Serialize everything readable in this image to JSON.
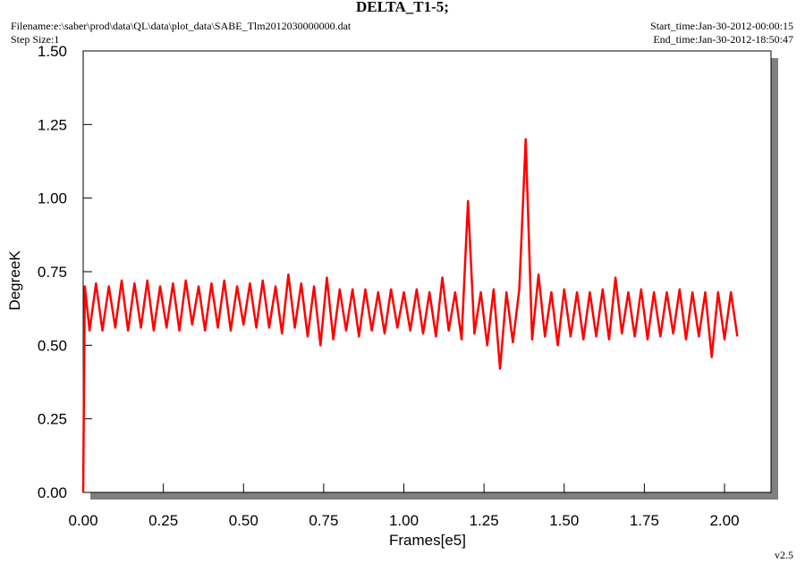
{
  "chart_data": {
    "type": "line",
    "title": "DELTA_T1-5;",
    "filename": "Filename:e:\\saber\\prod\\data\\QL\\data\\plot_data\\SABE_Tlm2012030000000.dat",
    "step_size": "Step Size:1",
    "start_time": "Start_time:Jan-30-2012-00:00:15",
    "end_time": "End_time:Jan-30-2012-18:50:47",
    "version": "v2.5",
    "x_label": "Frames[e5]",
    "y_label": "DegreeK",
    "xlim": [
      0,
      2.145
    ],
    "ylim": [
      0,
      1.5
    ],
    "xticks": [
      {
        "value": 0,
        "label": "0.00"
      },
      {
        "value": 0.25,
        "label": "0.25"
      },
      {
        "value": 0.5,
        "label": "0.50"
      },
      {
        "value": 0.75,
        "label": "0.75"
      },
      {
        "value": 1,
        "label": "1.00"
      },
      {
        "value": 1.25,
        "label": "1.25"
      },
      {
        "value": 1.5,
        "label": "1.50"
      },
      {
        "value": 1.75,
        "label": "1.75"
      },
      {
        "value": 2,
        "label": "2.00"
      }
    ],
    "yticks": [
      {
        "value": 0,
        "label": "0.00"
      },
      {
        "value": 0.25,
        "label": "0.25"
      },
      {
        "value": 0.5,
        "label": "0.50"
      },
      {
        "value": 0.75,
        "label": "0.75"
      },
      {
        "value": 1,
        "label": "1.00"
      },
      {
        "value": 1.25,
        "label": "1.25"
      },
      {
        "value": 1.5,
        "label": "1.50"
      }
    ],
    "color": "#ff0000",
    "x": [
      0,
      0.005,
      0.02,
      0.04,
      0.06,
      0.08,
      0.1,
      0.12,
      0.14,
      0.16,
      0.18,
      0.2,
      0.22,
      0.24,
      0.26,
      0.28,
      0.3,
      0.32,
      0.34,
      0.36,
      0.38,
      0.4,
      0.42,
      0.44,
      0.46,
      0.48,
      0.5,
      0.52,
      0.54,
      0.56,
      0.58,
      0.6,
      0.62,
      0.64,
      0.66,
      0.68,
      0.7,
      0.72,
      0.74,
      0.76,
      0.78,
      0.8,
      0.82,
      0.84,
      0.86,
      0.88,
      0.9,
      0.92,
      0.94,
      0.96,
      0.98,
      1.0,
      1.02,
      1.04,
      1.06,
      1.08,
      1.1,
      1.12,
      1.14,
      1.16,
      1.18,
      1.2,
      1.22,
      1.24,
      1.26,
      1.28,
      1.3,
      1.32,
      1.34,
      1.36,
      1.38,
      1.4,
      1.42,
      1.44,
      1.46,
      1.48,
      1.5,
      1.52,
      1.54,
      1.56,
      1.58,
      1.6,
      1.62,
      1.64,
      1.66,
      1.68,
      1.7,
      1.72,
      1.74,
      1.76,
      1.78,
      1.8,
      1.82,
      1.84,
      1.86,
      1.88,
      1.9,
      1.92,
      1.94,
      1.96,
      1.98,
      2.0,
      2.02,
      2.04
    ],
    "values": [
      0,
      0.7,
      0.55,
      0.71,
      0.55,
      0.7,
      0.56,
      0.72,
      0.55,
      0.71,
      0.56,
      0.72,
      0.55,
      0.7,
      0.56,
      0.71,
      0.55,
      0.72,
      0.57,
      0.7,
      0.55,
      0.71,
      0.56,
      0.72,
      0.55,
      0.7,
      0.57,
      0.71,
      0.56,
      0.72,
      0.56,
      0.7,
      0.54,
      0.74,
      0.56,
      0.71,
      0.53,
      0.7,
      0.5,
      0.73,
      0.52,
      0.69,
      0.55,
      0.69,
      0.53,
      0.69,
      0.55,
      0.68,
      0.54,
      0.69,
      0.56,
      0.68,
      0.55,
      0.69,
      0.54,
      0.68,
      0.53,
      0.73,
      0.55,
      0.68,
      0.52,
      0.99,
      0.54,
      0.68,
      0.5,
      0.69,
      0.42,
      0.68,
      0.51,
      0.69,
      1.2,
      0.52,
      0.74,
      0.53,
      0.68,
      0.5,
      0.69,
      0.53,
      0.68,
      0.52,
      0.68,
      0.53,
      0.69,
      0.52,
      0.73,
      0.54,
      0.68,
      0.53,
      0.69,
      0.52,
      0.68,
      0.53,
      0.68,
      0.54,
      0.69,
      0.52,
      0.68,
      0.53,
      0.68,
      0.46,
      0.68,
      0.52,
      0.68,
      0.53
    ]
  }
}
